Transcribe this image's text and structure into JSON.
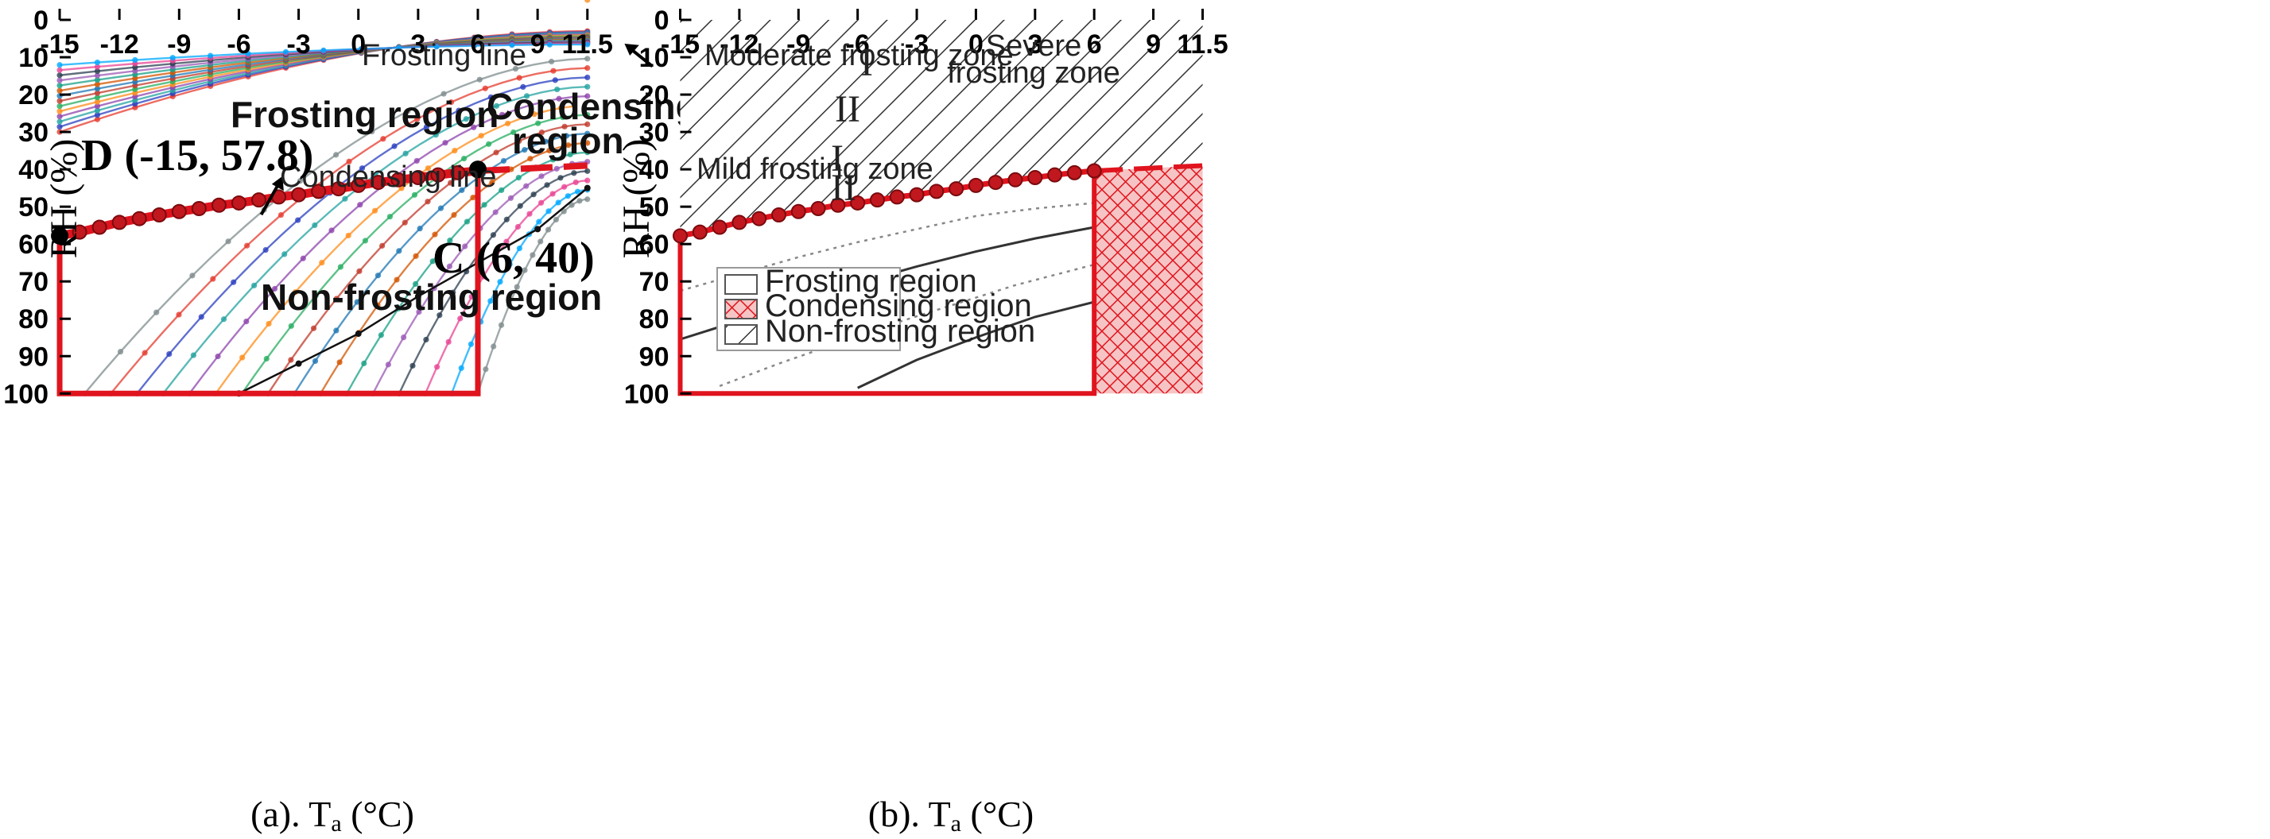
{
  "chart_data": [
    {
      "type": "line",
      "panel": "a",
      "xlabel_prefix": "(a). T",
      "xlabel_sub": "a",
      "xlabel_suffix": " (°C)",
      "ylabel": "RH (%)",
      "xlim": [
        -15,
        11.5
      ],
      "ylim": [
        0,
        100
      ],
      "xticks": [
        "-15",
        "-12",
        "-9",
        "-6",
        "-3",
        "0",
        "3",
        "6",
        "9",
        "11.5"
      ],
      "xtick_values": [
        -15,
        -12,
        -9,
        -6,
        -3,
        0,
        3,
        6,
        9,
        11.5
      ],
      "yticks": [
        "0",
        "10",
        "20",
        "30",
        "40",
        "50",
        "60",
        "70",
        "80",
        "90",
        "100"
      ],
      "ytick_values": [
        0,
        10,
        20,
        30,
        40,
        50,
        60,
        70,
        80,
        90,
        100
      ],
      "region_labels": {
        "frosting": "Frosting region",
        "condensing_1": "Condensing",
        "condensing_2": "region",
        "non_frosting": "Non-frosting region"
      },
      "annotations": {
        "frosting_line": "Frosting line",
        "condensing_line": "Condensing line"
      },
      "points": [
        {
          "label": "D (-15, 57.8)",
          "x": -15,
          "y": 57.8
        },
        {
          "label": "C (6, 40)",
          "x": 6,
          "y": 40
        }
      ],
      "condensing_line": {
        "x": [
          -15,
          -14,
          -13,
          -12,
          -11,
          -10,
          -9,
          -8,
          -7,
          -6,
          -5,
          -4,
          -3,
          -2,
          -1,
          0,
          1,
          2,
          3,
          4,
          5,
          6
        ],
        "y": [
          57.8,
          56.8,
          55.5,
          54.2,
          53.2,
          52.2,
          51.3,
          50.5,
          49.6,
          49.0,
          48.2,
          47.4,
          46.8,
          45.9,
          45.2,
          44.3,
          43.5,
          42.8,
          42.2,
          41.5,
          40.9,
          40.4
        ],
        "extension_x": [
          6,
          11.5
        ],
        "extension_y": [
          40.4,
          39.0
        ],
        "color": "#e0141e"
      },
      "frame_color": "#e0141e",
      "frame_box": {
        "x0": -15,
        "x1": 6,
        "y0": 40,
        "y1": 100
      },
      "frosting_line": {
        "x": [
          -6,
          -3,
          0,
          3,
          6,
          9,
          11.5
        ],
        "y": [
          100,
          92,
          84,
          74,
          65,
          56,
          45
        ]
      },
      "background_curves": {
        "count": 30,
        "colors": [
          "#e63b2e",
          "#2a3fbf",
          "#23a3a0",
          "#8e44ad",
          "#ff8c1a",
          "#27ae60",
          "#c0392b",
          "#1f77b4",
          "#d35400",
          "#16a085",
          "#9b59b6",
          "#2c3e50",
          "#e84393",
          "#00a8ff",
          "#7f8c8d"
        ]
      }
    },
    {
      "type": "area",
      "panel": "b",
      "xlabel_prefix": "(b). T",
      "xlabel_sub": "a",
      "xlabel_suffix": " (°C)",
      "ylabel": "RH (%)",
      "xlim": [
        -15,
        11.5
      ],
      "ylim": [
        0,
        100
      ],
      "xticks": [
        "-15",
        "-12",
        "-9",
        "-6",
        "-3",
        "0",
        "3",
        "6",
        "9",
        "11.5"
      ],
      "xtick_values": [
        -15,
        -12,
        -9,
        -6,
        -3,
        0,
        3,
        6,
        9,
        11.5
      ],
      "yticks": [
        "0",
        "10",
        "20",
        "30",
        "40",
        "50",
        "60",
        "70",
        "80",
        "90",
        "100"
      ],
      "ytick_values": [
        0,
        10,
        20,
        30,
        40,
        50,
        60,
        70,
        80,
        90,
        100
      ],
      "zones": {
        "moderate": "Moderate frosting zone",
        "severe_1": "Severe",
        "severe_2": "frosting zone",
        "mild": "Mild frosting zone",
        "roman_1a": "I",
        "roman_2a": "II",
        "roman_1b": "I",
        "roman_2b": "II"
      },
      "legend": [
        {
          "label": "Frosting region",
          "pattern": "none"
        },
        {
          "label": "Condensing region",
          "pattern": "red-grid"
        },
        {
          "label": "Non-frosting region",
          "pattern": "diagonal-hatch"
        }
      ],
      "condensing_line": {
        "x": [
          -15,
          -14,
          -13,
          -12,
          -11,
          -10,
          -9,
          -8,
          -7,
          -6,
          -5,
          -4,
          -3,
          -2,
          -1,
          0,
          1,
          2,
          3,
          4,
          5,
          6
        ],
        "y": [
          57.8,
          56.8,
          55.5,
          54.2,
          53.2,
          52.2,
          51.3,
          50.5,
          49.6,
          49.0,
          48.2,
          47.4,
          46.8,
          45.9,
          45.2,
          44.3,
          43.5,
          42.8,
          42.2,
          41.5,
          40.9,
          40.4
        ],
        "extension_x": [
          6,
          11.5
        ],
        "extension_y": [
          40.4,
          39.0
        ]
      },
      "solid_boundaries": [
        {
          "x": [
            -6,
            -3,
            0,
            3,
            6
          ],
          "y": [
            98.5,
            91,
            85,
            79.5,
            75.5
          ]
        },
        {
          "x": [
            -15,
            -12,
            -9,
            -6,
            -3,
            0,
            3,
            6
          ],
          "y": [
            85.5,
            80.5,
            75.5,
            70.5,
            66,
            62,
            58.5,
            55.5
          ]
        }
      ],
      "dotted_boundaries": [
        {
          "x": [
            -13,
            -10,
            -7,
            -4,
            -1,
            2,
            6
          ],
          "y": [
            98,
            92,
            86.5,
            81,
            76,
            71,
            65.5
          ]
        },
        {
          "x": [
            -15,
            -12,
            -9,
            -6,
            -3,
            0,
            3,
            6
          ],
          "y": [
            72.5,
            68,
            63.5,
            59.5,
            56,
            52.5,
            50.5,
            49
          ]
        }
      ],
      "condensing_fill_color": "#e0141e",
      "frame_color": "#e0141e"
    }
  ]
}
